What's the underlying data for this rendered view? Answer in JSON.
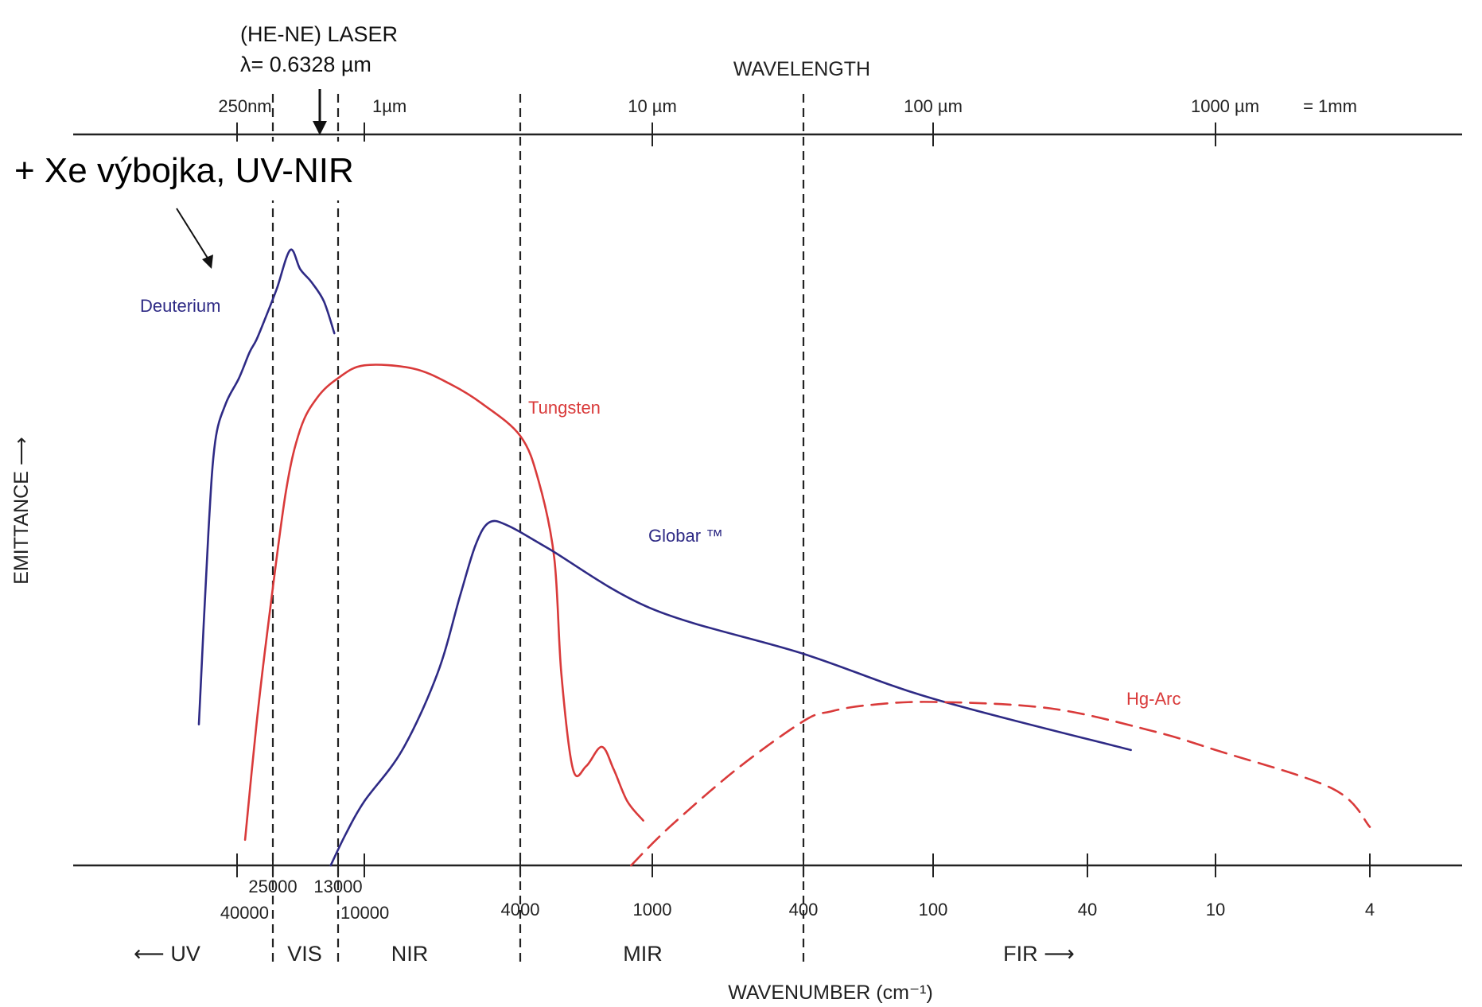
{
  "chart_data": {
    "type": "line",
    "ylabel": "EMITTANCE ⟶",
    "xlabel_bottom": "WAVENUMBER (cm⁻¹)",
    "xlabel_top": "WAVELENGTH",
    "bottom_ticks": [
      {
        "value": 40000,
        "label": "40000"
      },
      {
        "value": 25000,
        "label": "25000"
      },
      {
        "value": 13000,
        "label": "13000"
      },
      {
        "value": 10000,
        "label": "10000"
      },
      {
        "value": 4000,
        "label": "4000"
      },
      {
        "value": 1000,
        "label": "1000"
      },
      {
        "value": 400,
        "label": "400"
      },
      {
        "value": 100,
        "label": "100"
      },
      {
        "value": 40,
        "label": "40"
      },
      {
        "value": 10,
        "label": "10"
      },
      {
        "value": 4,
        "label": "4"
      }
    ],
    "top_ticks": [
      {
        "value": 40000,
        "label": "250nm"
      },
      {
        "value": 10000,
        "label": "1µm"
      },
      {
        "value": 1000,
        "label": "10 µm"
      },
      {
        "value": 100,
        "label": "100 µm"
      },
      {
        "value": 10,
        "label": "1000 µm"
      }
    ],
    "top_mm_note": "= 1mm",
    "region_boundaries": [
      25000,
      13000,
      4000,
      400
    ],
    "regions": [
      {
        "label": "⟵ UV"
      },
      {
        "label": "VIS"
      },
      {
        "label": "NIR"
      },
      {
        "label": "MIR"
      },
      {
        "label": "FIR ⟶"
      }
    ],
    "annotation": {
      "laser_title": "(HE-NE) LASER",
      "laser_value": "λ= 0.6328 µm",
      "laser_wavenumber": 15803,
      "callout": "+ Xe výbojka, UV-NIR"
    },
    "series": [
      {
        "name": "Deuterium",
        "color": "#2e2a85",
        "style": "solid",
        "points": [
          [
            51000,
            0.22
          ],
          [
            48000,
            0.52
          ],
          [
            46000,
            0.66
          ],
          [
            43000,
            0.72
          ],
          [
            39000,
            0.76
          ],
          [
            34000,
            0.8
          ],
          [
            31000,
            0.82
          ],
          [
            27000,
            0.86
          ],
          [
            24000,
            0.9
          ],
          [
            21000,
            0.96
          ],
          [
            19000,
            0.93
          ],
          [
            17000,
            0.91
          ],
          [
            15000,
            0.88
          ],
          [
            13500,
            0.83
          ]
        ]
      },
      {
        "name": "Tungsten",
        "color": "#d93a3a",
        "style": "solid",
        "points": [
          [
            36000,
            0.04
          ],
          [
            31000,
            0.22
          ],
          [
            27000,
            0.36
          ],
          [
            22000,
            0.58
          ],
          [
            19000,
            0.68
          ],
          [
            16000,
            0.73
          ],
          [
            13000,
            0.76
          ],
          [
            10000,
            0.78
          ],
          [
            7500,
            0.775
          ],
          [
            6000,
            0.75
          ],
          [
            5000,
            0.72
          ],
          [
            4000,
            0.67
          ],
          [
            3300,
            0.6
          ],
          [
            2800,
            0.48
          ],
          [
            2600,
            0.3
          ],
          [
            2300,
            0.15
          ],
          [
            2000,
            0.155
          ],
          [
            1700,
            0.185
          ],
          [
            1500,
            0.15
          ],
          [
            1300,
            0.1
          ],
          [
            1100,
            0.07
          ]
        ]
      },
      {
        "name": "Globar ™",
        "color": "#2e2a85",
        "style": "solid",
        "points": [
          [
            14000,
            0.0
          ],
          [
            12000,
            0.05
          ],
          [
            10000,
            0.1
          ],
          [
            8000,
            0.18
          ],
          [
            6500,
            0.3
          ],
          [
            5700,
            0.42
          ],
          [
            5200,
            0.5
          ],
          [
            4800,
            0.535
          ],
          [
            4300,
            0.53
          ],
          [
            3000,
            0.495
          ],
          [
            1000,
            0.4
          ],
          [
            400,
            0.33
          ],
          [
            100,
            0.26
          ],
          [
            25,
            0.18
          ]
        ]
      },
      {
        "name": "Hg-Arc",
        "color": "#d93a3a",
        "style": "dashed",
        "points": [
          [
            1250,
            0.0
          ],
          [
            900,
            0.06
          ],
          [
            600,
            0.15
          ],
          [
            400,
            0.225
          ],
          [
            300,
            0.24
          ],
          [
            200,
            0.25
          ],
          [
            100,
            0.255
          ],
          [
            50,
            0.245
          ],
          [
            20,
            0.21
          ],
          [
            10,
            0.18
          ],
          [
            5,
            0.12
          ],
          [
            4,
            0.06
          ]
        ]
      }
    ]
  }
}
